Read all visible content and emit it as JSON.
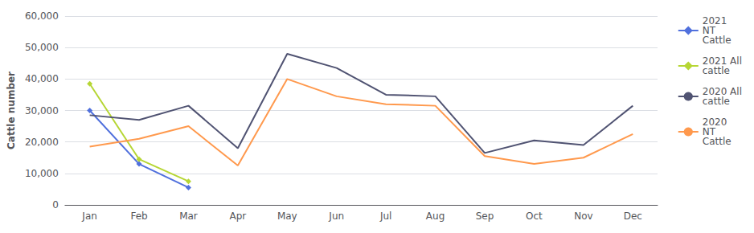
{
  "chart_data": {
    "type": "line",
    "y_label": "Cattle number",
    "categories": [
      "Jan",
      "Feb",
      "Mar",
      "Apr",
      "May",
      "Jun",
      "Jul",
      "Aug",
      "Sep",
      "Oct",
      "Nov",
      "Dec"
    ],
    "series": [
      {
        "name": "2021\nNT\nCattle",
        "marker": "diamond",
        "values": [
          30000,
          13000,
          5500,
          null,
          null,
          null,
          null,
          null,
          null,
          null,
          null,
          null
        ]
      },
      {
        "name": "2021 All\ncattle",
        "marker": "diamond",
        "values": [
          38500,
          14500,
          7500,
          null,
          null,
          null,
          null,
          null,
          null,
          null,
          null,
          null
        ]
      },
      {
        "name": "2020 All\ncattle",
        "values": [
          28500,
          27000,
          31500,
          18000,
          48000,
          43500,
          35000,
          34500,
          16500,
          20500,
          19000,
          31500
        ]
      },
      {
        "name": "2020\nNT\nCattle",
        "values": [
          18500,
          21000,
          25000,
          12500,
          40000,
          34500,
          32000,
          31500,
          15500,
          13000,
          15000,
          22500
        ]
      }
    ],
    "ylim": [
      0,
      60000
    ],
    "yticks": [
      0,
      {
        "value": 10000,
        "label": "10,000"
      },
      {
        "value": 20000,
        "label": "20,000"
      },
      {
        "value": 30000,
        "label": "30,000"
      },
      {
        "value": 40000,
        "label": "40,000"
      },
      {
        "value": 50000,
        "label": "50,000"
      },
      {
        "value": 60000,
        "label": "60,000"
      }
    ],
    "grid": true,
    "legend": "right"
  }
}
